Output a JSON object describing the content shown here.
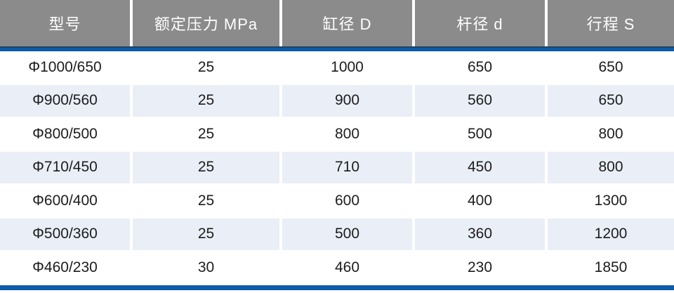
{
  "chart_data": {
    "type": "table",
    "title": "",
    "columns": [
      "型号",
      "额定压力 MPa",
      "缸径 D",
      "杆径 d",
      "行程 S"
    ],
    "rows": [
      [
        "Φ1000/650",
        "25",
        "1000",
        "650",
        "650"
      ],
      [
        "Φ900/560",
        "25",
        "900",
        "560",
        "650"
      ],
      [
        "Φ800/500",
        "25",
        "800",
        "500",
        "800"
      ],
      [
        "Φ710/450",
        "25",
        "710",
        "450",
        "800"
      ],
      [
        "Φ600/400",
        "25",
        "600",
        "400",
        "1300"
      ],
      [
        "Φ500/360",
        "25",
        "500",
        "360",
        "1200"
      ],
      [
        "Φ460/230",
        "30",
        "460",
        "230",
        "1850"
      ]
    ]
  },
  "colors": {
    "header_bg": "#8b8b8b",
    "header_text": "#ffffff",
    "accent_blue": "#0d5cab",
    "accent_dark": "#23405f",
    "row_bg": "#ffffff",
    "row_alt_bg": "#eaeef6",
    "cell_text": "#1c1c1c"
  }
}
